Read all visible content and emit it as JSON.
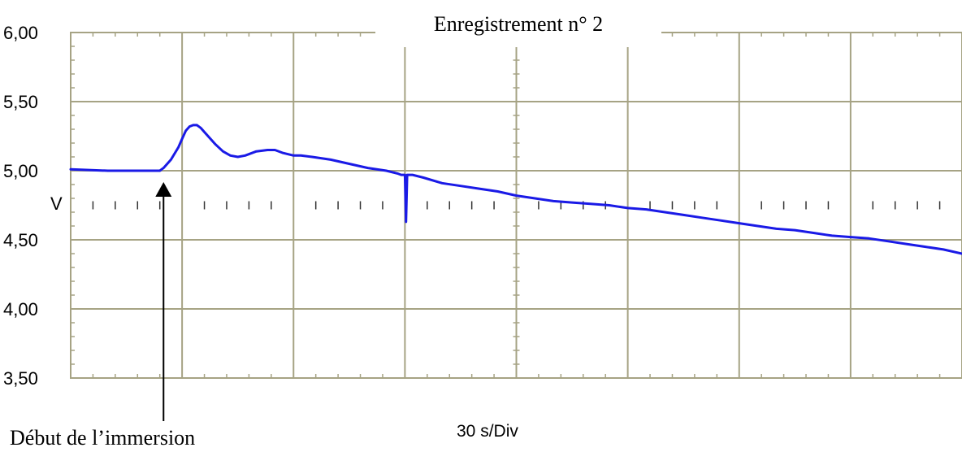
{
  "colors": {
    "plot_border": "#a6a384",
    "grid": "#a6a384",
    "trace": "#1a1ae6",
    "text": "#000000",
    "background": "#ffffff"
  },
  "chart_data": {
    "type": "line",
    "title": "Enregistrement n° 2",
    "xlabel": "30 s/Div",
    "ylabel": "V",
    "x_unit": "s",
    "x_divisions": 8,
    "seconds_per_division": 30,
    "xlim": [
      0,
      240
    ],
    "ylim": [
      3.5,
      6.0
    ],
    "grid": true,
    "y_ticks": [
      {
        "value": 3.5,
        "label": "3,50"
      },
      {
        "value": 4.0,
        "label": "4,00"
      },
      {
        "value": 4.5,
        "label": "4,50"
      },
      {
        "value": 5.0,
        "label": "5,00"
      },
      {
        "value": 5.5,
        "label": "5,50"
      },
      {
        "value": 6.0,
        "label": "6,00"
      }
    ],
    "series": [
      {
        "values_x": [
          0,
          10,
          20,
          23,
          24,
          25,
          27,
          29,
          30,
          31,
          32,
          33,
          34,
          35,
          36,
          37,
          39,
          41,
          43,
          45,
          47,
          50,
          53,
          55,
          57,
          60,
          62,
          65,
          70,
          75,
          80,
          85,
          88,
          89,
          90,
          90.3,
          90.6,
          91,
          91.5,
          92,
          95,
          100,
          105,
          110,
          115,
          120,
          125,
          130,
          135,
          140,
          145,
          150,
          155,
          160,
          165,
          170,
          175,
          180,
          185,
          190,
          195,
          200,
          205,
          210,
          215,
          220,
          225,
          230,
          235,
          240
        ],
        "values_y": [
          5.01,
          5.0,
          5.0,
          5.0,
          5.0,
          5.02,
          5.08,
          5.17,
          5.23,
          5.29,
          5.32,
          5.33,
          5.33,
          5.31,
          5.28,
          5.25,
          5.19,
          5.14,
          5.11,
          5.1,
          5.11,
          5.14,
          5.15,
          5.15,
          5.13,
          5.11,
          5.11,
          5.1,
          5.08,
          5.05,
          5.02,
          5.0,
          4.98,
          4.97,
          4.97,
          4.63,
          4.97,
          4.97,
          4.97,
          4.97,
          4.95,
          4.91,
          4.89,
          4.87,
          4.85,
          4.82,
          4.8,
          4.78,
          4.77,
          4.76,
          4.75,
          4.73,
          4.72,
          4.7,
          4.68,
          4.66,
          4.64,
          4.62,
          4.6,
          4.58,
          4.57,
          4.55,
          4.53,
          4.52,
          4.51,
          4.49,
          4.47,
          4.45,
          4.43,
          4.4
        ]
      }
    ],
    "annotations": [
      {
        "text": "Début de l’immersion",
        "x": 25,
        "y": 5.0
      }
    ]
  }
}
